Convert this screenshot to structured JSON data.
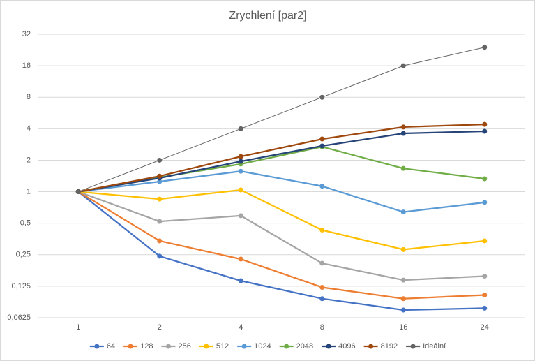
{
  "chart_data": {
    "type": "line",
    "title": "Zrychlení [par2]",
    "categories": [
      "1",
      "2",
      "4",
      "8",
      "16",
      "24"
    ],
    "ylog": true,
    "ylog_base": 2,
    "grid": true,
    "legend": "bottom",
    "ylim": [
      0.0625,
      32
    ],
    "yticks": [
      {
        "value": 0.0625,
        "label": "0,0625"
      },
      {
        "value": 0.125,
        "label": "0,125"
      },
      {
        "value": 0.25,
        "label": "0,25"
      },
      {
        "value": 0.5,
        "label": "0,5"
      },
      1,
      2,
      4,
      8,
      16,
      32
    ],
    "series": [
      {
        "name": "64",
        "color": "#4472c4",
        "values": [
          1,
          0.242,
          0.141,
          0.095,
          0.074,
          0.077
        ]
      },
      {
        "name": "128",
        "color": "#ed7d31",
        "values": [
          1,
          0.339,
          0.227,
          0.122,
          0.095,
          0.103
        ]
      },
      {
        "name": "256",
        "color": "#a5a5a5",
        "values": [
          1,
          0.52,
          0.59,
          0.207,
          0.143,
          0.156
        ]
      },
      {
        "name": "512",
        "color": "#ffc000",
        "values": [
          1,
          0.85,
          1.04,
          0.43,
          0.28,
          0.339
        ]
      },
      {
        "name": "1024",
        "color": "#5b9bd5",
        "values": [
          1,
          1.25,
          1.57,
          1.13,
          0.64,
          0.79
        ]
      },
      {
        "name": "2048",
        "color": "#70ad47",
        "values": [
          1,
          1.37,
          1.84,
          2.69,
          1.67,
          1.33
        ]
      },
      {
        "name": "4096",
        "color": "#264478",
        "values": [
          1,
          1.35,
          1.95,
          2.74,
          3.61,
          3.78
        ]
      },
      {
        "name": "8192",
        "color": "#9e480e",
        "values": [
          1,
          1.41,
          2.17,
          3.19,
          4.15,
          4.4
        ]
      },
      {
        "name": "Ideální",
        "color": "#636363",
        "values": [
          1,
          2,
          4,
          8,
          16,
          24
        ]
      }
    ]
  }
}
